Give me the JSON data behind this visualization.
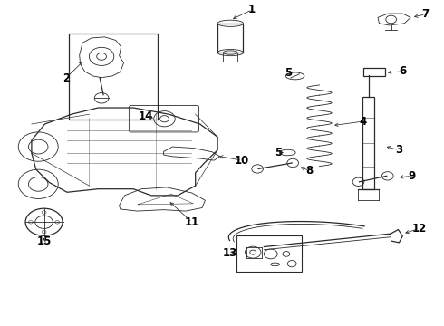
{
  "background_color": "#ffffff",
  "line_color": "#2a2a2a",
  "label_color": "#000000",
  "figsize": [
    4.9,
    3.6
  ],
  "dpi": 100,
  "font_size": 8.5
}
